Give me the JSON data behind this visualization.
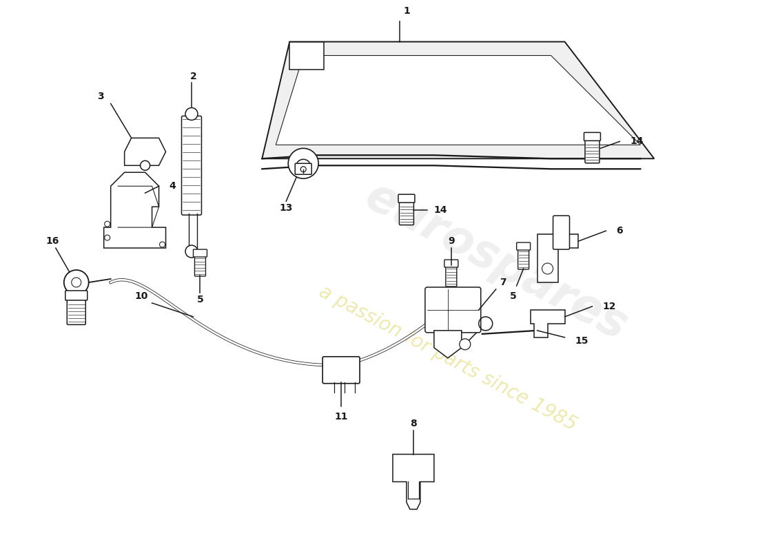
{
  "background_color": "#ffffff",
  "line_color": "#1a1a1a",
  "watermark1": "eurospares",
  "watermark2": "a passion for parts since 1985",
  "fig_w": 11.0,
  "fig_h": 8.0,
  "dpi": 100
}
